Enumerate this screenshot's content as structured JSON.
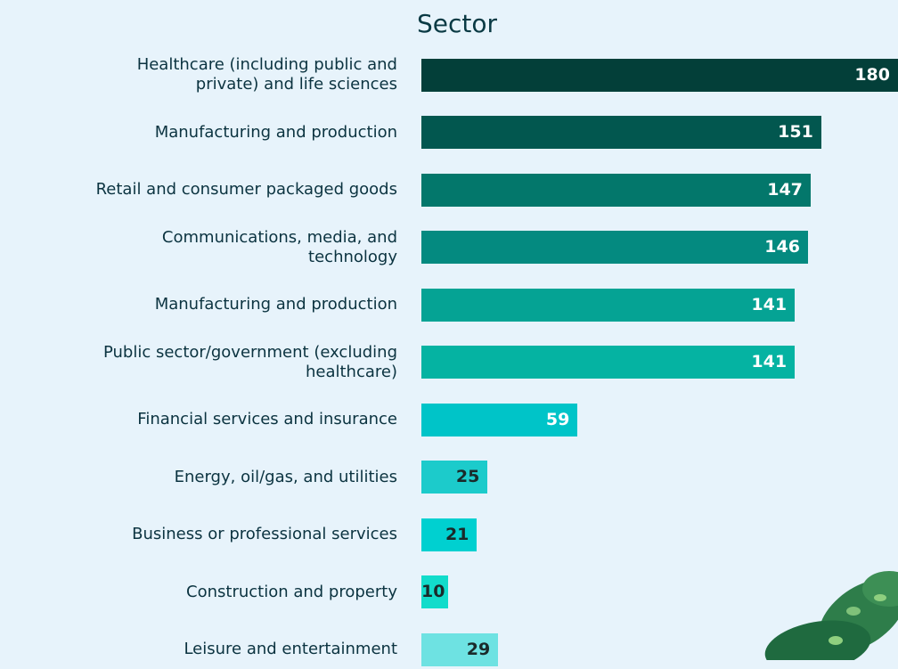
{
  "chart_data": {
    "type": "hbar",
    "title": "Sector",
    "categories": [
      "Healthcare (including public and private) and life sciences",
      "Manufacturing and production",
      "Retail and consumer packaged goods",
      "Communications, media, and technology",
      "Manufacturing and production",
      "Public sector/government (excluding healthcare)",
      "Financial services and insurance",
      "Energy, oil/gas, and utilities",
      "Business or professional services",
      "Construction and property",
      "Leisure and entertainment"
    ],
    "values": [
      180,
      151,
      147,
      146,
      141,
      141,
      59,
      25,
      21,
      10,
      29
    ],
    "colors": [
      "#033f39",
      "#02574f",
      "#03776b",
      "#048a80",
      "#05a394",
      "#05b3a2",
      "#00c4c8",
      "#1ccbcb",
      "#00d0d0",
      "#12dccb",
      "#6ee2e2"
    ],
    "label_colors": [
      "#ffffff",
      "#ffffff",
      "#ffffff",
      "#ffffff",
      "#ffffff",
      "#ffffff",
      "#ffffff",
      "#1a2a2a",
      "#1a2a2a",
      "#1a2a2a",
      "#1a2a2a"
    ]
  }
}
